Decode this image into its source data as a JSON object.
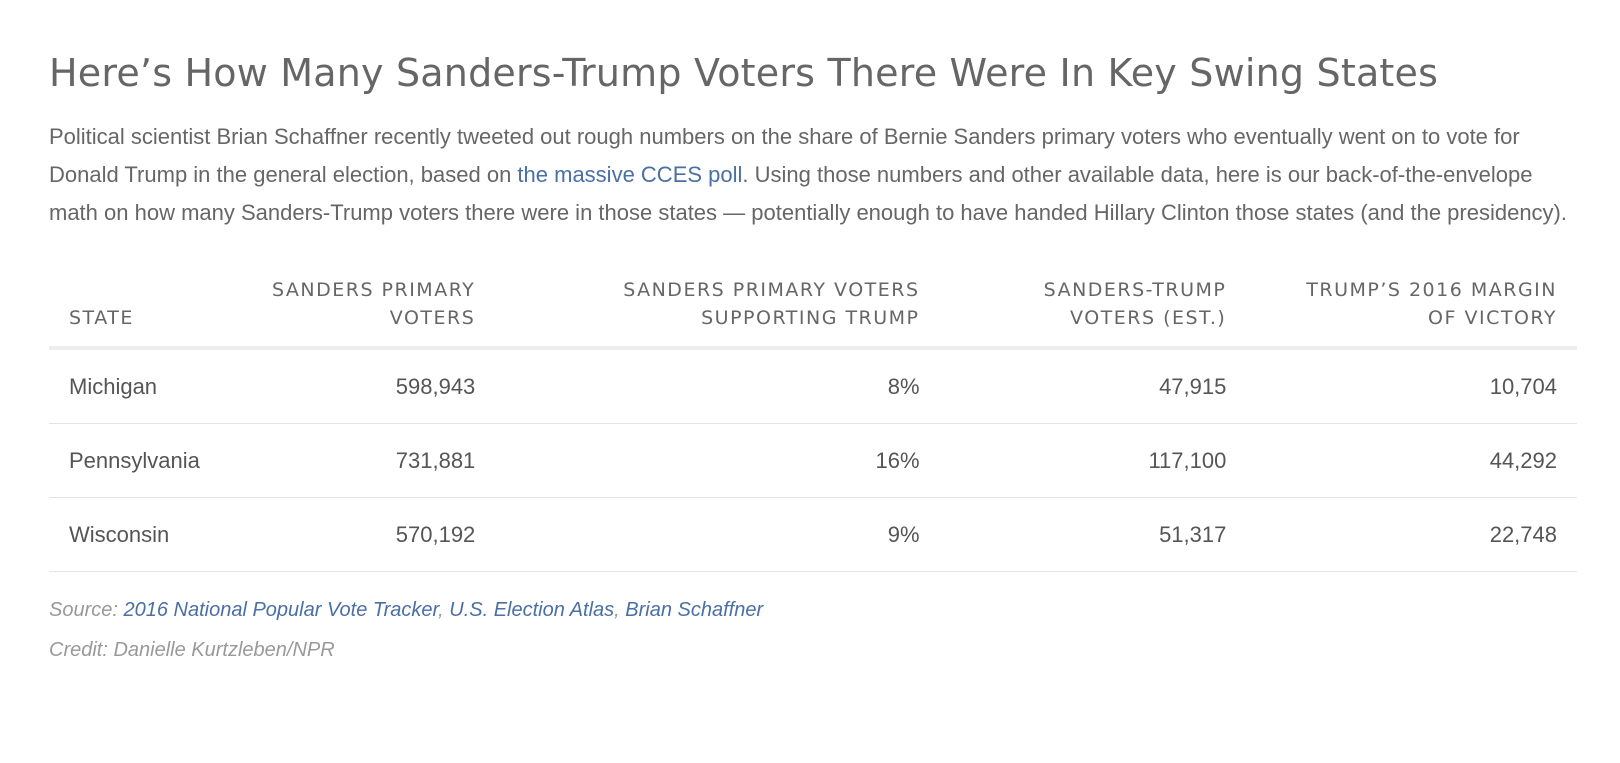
{
  "article": {
    "title": "Here’s How Many Sanders-Trump Voters There Were In Key Swing States",
    "intro_part1": "Political scientist Brian Schaffner recently tweeted out rough numbers on the share of Bernie Sanders primary voters who eventually went on to vote for Donald Trump in the general election, based on ",
    "intro_link": "the massive CCES poll",
    "intro_part2": ". Using those numbers and other available data, here is our back-of-the-envelope math on how many Sanders-Trump voters there were in those states — potentially enough to have handed Hillary Clinton those states (and the presidency)."
  },
  "table": {
    "headers": {
      "state_line1": "STATE",
      "primary_line1": "SANDERS PRIMARY",
      "primary_line2": "VOTERS",
      "supporting_line1": "SANDERS PRIMARY VOTERS",
      "supporting_line2": "SUPPORTING TRUMP",
      "est_line1": "SANDERS-TRUMP",
      "est_line2": "VOTERS (EST.)",
      "margin_line1": "TRUMP’S 2016 MARGIN",
      "margin_line2": "OF VICTORY"
    },
    "rows": [
      {
        "state": "Michigan",
        "primary_voters": "598,943",
        "supporting_trump": "8%",
        "sanders_trump_est": "47,915",
        "margin": "10,704"
      },
      {
        "state": "Pennsylvania",
        "primary_voters": "731,881",
        "supporting_trump": "16%",
        "sanders_trump_est": "117,100",
        "margin": "44,292"
      },
      {
        "state": "Wisconsin",
        "primary_voters": "570,192",
        "supporting_trump": "9%",
        "sanders_trump_est": "51,317",
        "margin": "22,748"
      }
    ]
  },
  "footer": {
    "source_label": "Source: ",
    "source_link1": "2016 National Popular Vote Tracker",
    "sep1": ", ",
    "source_link2": "U.S. Election Atlas",
    "sep2": ", ",
    "source_link3": "Brian Schaffner",
    "credit": "Credit: Danielle Kurtzleben/NPR"
  },
  "colors": {
    "link": "#4a6fa5",
    "text": "#555555",
    "muted": "#999999"
  }
}
